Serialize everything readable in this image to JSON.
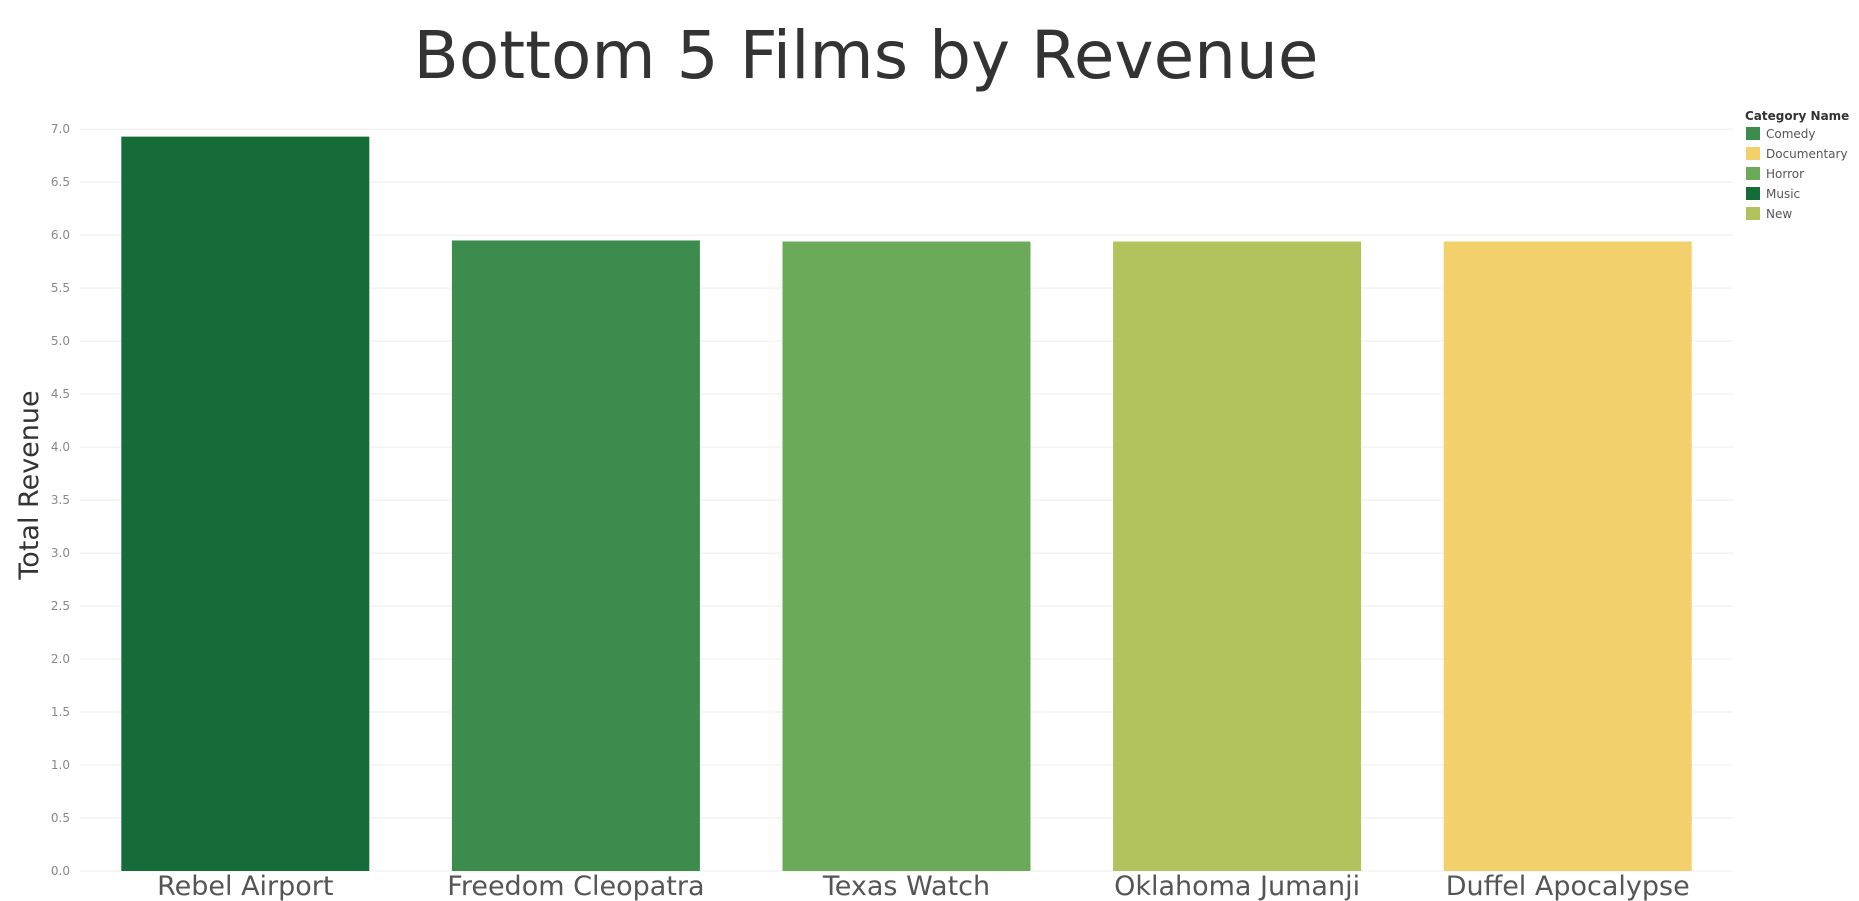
{
  "chart_data": {
    "type": "bar",
    "title": "Bottom 5 Films by Revenue",
    "xlabel": "",
    "ylabel": "Total Revenue",
    "ylim": [
      0,
      7.2
    ],
    "yticks": [
      "0.0",
      "0.5",
      "1.0",
      "1.5",
      "2.0",
      "2.5",
      "3.0",
      "3.5",
      "4.0",
      "4.5",
      "5.0",
      "5.5",
      "6.0",
      "6.5",
      "7.0"
    ],
    "grid": true,
    "legend_position": "top-right",
    "legend_title": "Category Name",
    "categories": [
      "Rebel Airport",
      "Freedom Cleopatra",
      "Texas Watch",
      "Oklahoma Jumanji",
      "Duffel Apocalypse"
    ],
    "values": [
      6.93,
      5.95,
      5.94,
      5.94,
      5.94
    ],
    "bar_categories": [
      "Music",
      "Comedy",
      "Horror",
      "New",
      "Documentary"
    ],
    "legend": [
      {
        "name": "Comedy",
        "color": "#3c8c4e"
      },
      {
        "name": "Documentary",
        "color": "#f2d06b"
      },
      {
        "name": "Horror",
        "color": "#6aaa58"
      },
      {
        "name": "Music",
        "color": "#156c38"
      },
      {
        "name": "New",
        "color": "#b2c35d"
      }
    ]
  }
}
